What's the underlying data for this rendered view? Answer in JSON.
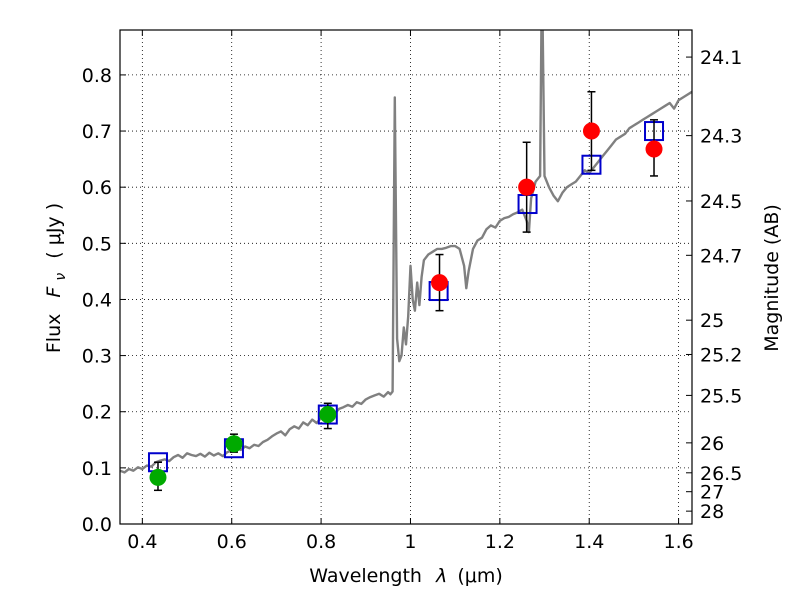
{
  "chart_data": {
    "type": "scatter",
    "xlabel_main": "Wavelength",
    "xlabel_symbol": "λ",
    "xlabel_unit": "(μm)",
    "ylabel_main": "Flux",
    "ylabel_symbol": "F",
    "ylabel_subscript": "ν",
    "ylabel_unit": "( μJy )",
    "y2label": "Magnitude (AB)",
    "xlim": [
      0.35,
      1.63
    ],
    "ylim": [
      0.0,
      0.88
    ],
    "grid": true,
    "x_ticks": [
      0.4,
      0.6,
      0.8,
      1.0,
      1.2,
      1.4,
      1.6
    ],
    "x_tick_labels": [
      "0.4",
      "0.6",
      "0.8",
      "1",
      "1.2",
      "1.4",
      "1.6"
    ],
    "y_ticks": [
      0.0,
      0.1,
      0.2,
      0.3,
      0.4,
      0.5,
      0.6,
      0.7,
      0.8
    ],
    "y_tick_labels": [
      "0.0",
      "0.1",
      "0.2",
      "0.3",
      "0.4",
      "0.5",
      "0.6",
      "0.7",
      "0.8"
    ],
    "y2_ticks": [
      "24.1",
      "24.3",
      "24.5",
      "24.7",
      "25",
      "25.2",
      "25.5",
      "26",
      "26.5",
      "27",
      "28"
    ],
    "colors": {
      "spectrum": "#808080",
      "detected": "#ff0000",
      "weak": "#00aa00",
      "model": "#0000cc",
      "errorbar": "#000000"
    },
    "series": [
      {
        "type": "line",
        "points": [
          [
            0.35,
            0.095
          ],
          [
            0.36,
            0.092
          ],
          [
            0.37,
            0.098
          ],
          [
            0.38,
            0.095
          ],
          [
            0.39,
            0.101
          ],
          [
            0.4,
            0.098
          ],
          [
            0.41,
            0.104
          ],
          [
            0.42,
            0.102
          ],
          [
            0.43,
            0.11
          ],
          [
            0.44,
            0.113
          ],
          [
            0.45,
            0.115
          ],
          [
            0.46,
            0.112
          ],
          [
            0.47,
            0.119
          ],
          [
            0.48,
            0.123
          ],
          [
            0.49,
            0.118
          ],
          [
            0.5,
            0.126
          ],
          [
            0.51,
            0.123
          ],
          [
            0.52,
            0.121
          ],
          [
            0.53,
            0.125
          ],
          [
            0.54,
            0.12
          ],
          [
            0.55,
            0.127
          ],
          [
            0.56,
            0.122
          ],
          [
            0.57,
            0.126
          ],
          [
            0.58,
            0.121
          ],
          [
            0.59,
            0.128
          ],
          [
            0.6,
            0.131
          ],
          [
            0.61,
            0.135
          ],
          [
            0.62,
            0.132
          ],
          [
            0.63,
            0.138
          ],
          [
            0.64,
            0.135
          ],
          [
            0.65,
            0.141
          ],
          [
            0.66,
            0.139
          ],
          [
            0.67,
            0.146
          ],
          [
            0.68,
            0.15
          ],
          [
            0.69,
            0.156
          ],
          [
            0.7,
            0.161
          ],
          [
            0.71,
            0.165
          ],
          [
            0.72,
            0.158
          ],
          [
            0.73,
            0.169
          ],
          [
            0.74,
            0.174
          ],
          [
            0.75,
            0.17
          ],
          [
            0.76,
            0.181
          ],
          [
            0.77,
            0.176
          ],
          [
            0.78,
            0.186
          ],
          [
            0.79,
            0.18
          ],
          [
            0.8,
            0.189
          ],
          [
            0.81,
            0.195
          ],
          [
            0.82,
            0.2
          ],
          [
            0.83,
            0.196
          ],
          [
            0.84,
            0.205
          ],
          [
            0.85,
            0.208
          ],
          [
            0.86,
            0.212
          ],
          [
            0.87,
            0.209
          ],
          [
            0.88,
            0.217
          ],
          [
            0.89,
            0.214
          ],
          [
            0.9,
            0.222
          ],
          [
            0.91,
            0.226
          ],
          [
            0.92,
            0.229
          ],
          [
            0.93,
            0.232
          ],
          [
            0.94,
            0.227
          ],
          [
            0.95,
            0.235
          ],
          [
            0.955,
            0.231
          ],
          [
            0.96,
            0.236
          ],
          [
            0.965,
            0.76
          ],
          [
            0.97,
            0.33
          ],
          [
            0.975,
            0.29
          ],
          [
            0.98,
            0.3
          ],
          [
            0.985,
            0.35
          ],
          [
            0.99,
            0.32
          ],
          [
            0.995,
            0.37
          ],
          [
            1.0,
            0.46
          ],
          [
            1.005,
            0.4
          ],
          [
            1.01,
            0.38
          ],
          [
            1.015,
            0.43
          ],
          [
            1.02,
            0.39
          ],
          [
            1.025,
            0.44
          ],
          [
            1.03,
            0.47
          ],
          [
            1.04,
            0.48
          ],
          [
            1.05,
            0.485
          ],
          [
            1.06,
            0.49
          ],
          [
            1.07,
            0.49
          ],
          [
            1.08,
            0.492
          ],
          [
            1.09,
            0.495
          ],
          [
            1.1,
            0.495
          ],
          [
            1.11,
            0.49
          ],
          [
            1.12,
            0.46
          ],
          [
            1.125,
            0.42
          ],
          [
            1.13,
            0.45
          ],
          [
            1.14,
            0.49
          ],
          [
            1.15,
            0.505
          ],
          [
            1.16,
            0.51
          ],
          [
            1.17,
            0.525
          ],
          [
            1.18,
            0.532
          ],
          [
            1.19,
            0.528
          ],
          [
            1.2,
            0.54
          ],
          [
            1.21,
            0.545
          ],
          [
            1.22,
            0.547
          ],
          [
            1.23,
            0.552
          ],
          [
            1.24,
            0.555
          ],
          [
            1.25,
            0.56
          ],
          [
            1.26,
            0.54
          ],
          [
            1.265,
            0.52
          ],
          [
            1.27,
            0.58
          ],
          [
            1.28,
            0.61
          ],
          [
            1.29,
            0.62
          ],
          [
            1.293,
            0.88
          ],
          [
            1.296,
            0.88
          ],
          [
            1.3,
            0.62
          ],
          [
            1.31,
            0.6
          ],
          [
            1.32,
            0.585
          ],
          [
            1.33,
            0.575
          ],
          [
            1.34,
            0.59
          ],
          [
            1.35,
            0.6
          ],
          [
            1.36,
            0.605
          ],
          [
            1.37,
            0.61
          ],
          [
            1.38,
            0.62
          ],
          [
            1.39,
            0.63
          ],
          [
            1.4,
            0.625
          ],
          [
            1.41,
            0.635
          ],
          [
            1.42,
            0.645
          ],
          [
            1.43,
            0.655
          ],
          [
            1.44,
            0.665
          ],
          [
            1.45,
            0.675
          ],
          [
            1.46,
            0.685
          ],
          [
            1.47,
            0.69
          ],
          [
            1.48,
            0.695
          ],
          [
            1.49,
            0.705
          ],
          [
            1.5,
            0.71
          ],
          [
            1.51,
            0.715
          ],
          [
            1.52,
            0.72
          ],
          [
            1.53,
            0.725
          ],
          [
            1.54,
            0.73
          ],
          [
            1.55,
            0.735
          ],
          [
            1.56,
            0.74
          ],
          [
            1.57,
            0.745
          ],
          [
            1.58,
            0.75
          ],
          [
            1.59,
            0.74
          ],
          [
            1.6,
            0.755
          ],
          [
            1.61,
            0.76
          ],
          [
            1.62,
            0.765
          ],
          [
            1.63,
            0.77
          ]
        ]
      },
      {
        "type": "squares",
        "points": [
          [
            0.435,
            0.11
          ],
          [
            0.605,
            0.135
          ],
          [
            0.815,
            0.195
          ],
          [
            1.063,
            0.415
          ],
          [
            1.262,
            0.57
          ],
          [
            1.405,
            0.64
          ],
          [
            1.545,
            0.7
          ]
        ]
      },
      {
        "type": "circles",
        "points": [
          {
            "x": 0.435,
            "y": 0.083,
            "err": [
              0.06,
              0.11
            ]
          },
          {
            "x": 0.605,
            "y": 0.143,
            "err": [
              0.128,
              0.16
            ]
          },
          {
            "x": 0.815,
            "y": 0.195,
            "err": [
              0.17,
              0.215
            ]
          }
        ]
      },
      {
        "type": "circles",
        "points": [
          {
            "x": 1.065,
            "y": 0.43,
            "err": [
              0.38,
              0.48
            ]
          },
          {
            "x": 1.26,
            "y": 0.6,
            "err": [
              0.52,
              0.68
            ]
          },
          {
            "x": 1.405,
            "y": 0.7,
            "err": [
              0.63,
              0.77
            ]
          },
          {
            "x": 1.545,
            "y": 0.668,
            "err": [
              0.62,
              0.72
            ]
          }
        ]
      }
    ]
  }
}
